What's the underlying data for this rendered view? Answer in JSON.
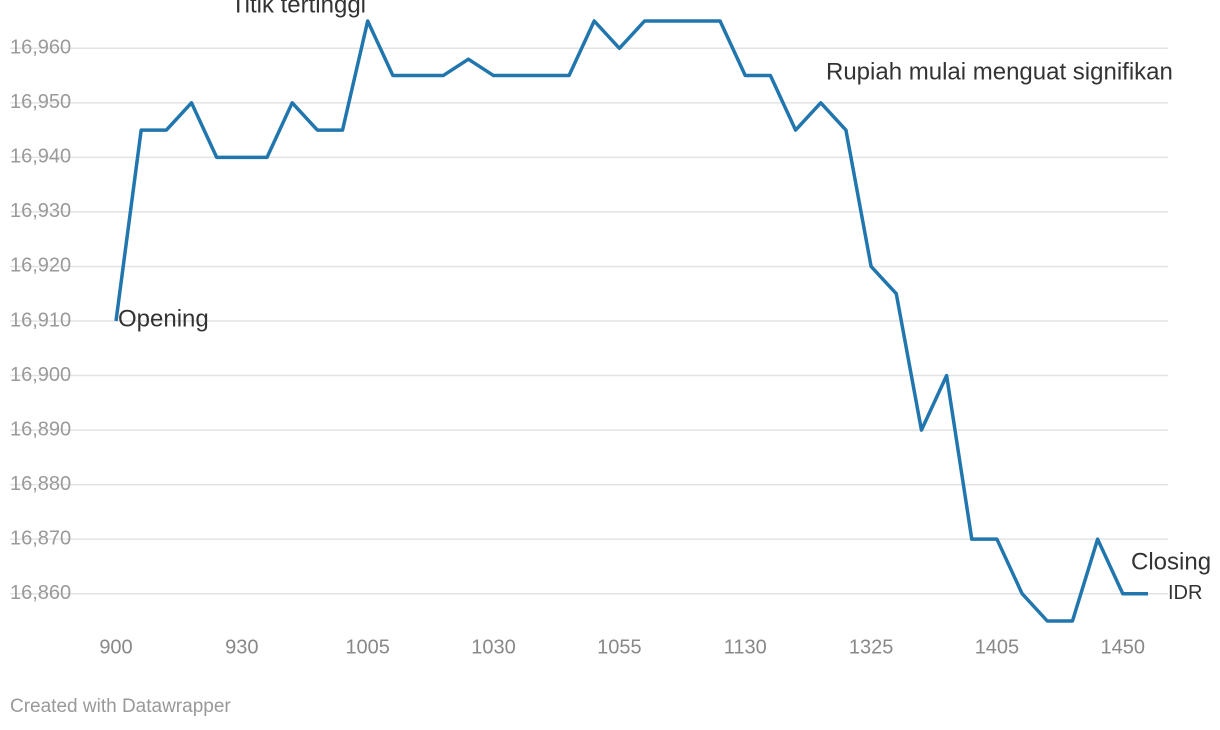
{
  "chart_data": {
    "type": "line",
    "annotations": {
      "peak": "Titik tertinggi",
      "strengthen": "Rupiah mulai menguat signifikan",
      "opening": "Opening",
      "closing": "Closing"
    },
    "footer": "Created with Datawrapper",
    "categories": [
      "900",
      null,
      null,
      null,
      null,
      "930",
      null,
      null,
      null,
      null,
      "1005",
      null,
      null,
      null,
      null,
      "1030",
      null,
      null,
      null,
      null,
      "1055",
      null,
      null,
      null,
      null,
      "1130",
      null,
      null,
      null,
      null,
      "1325",
      null,
      null,
      null,
      null,
      "1405",
      null,
      null,
      null,
      null,
      "1450",
      null
    ],
    "series": [
      {
        "name": "IDR",
        "color": "#2176ae",
        "values": [
          16910,
          16945,
          16945,
          16950,
          16940,
          16940,
          16940,
          16950,
          16945,
          16945,
          16965,
          16955,
          16955,
          16955,
          16958,
          16955,
          16955,
          16955,
          16955,
          16965,
          16960,
          16965,
          16965,
          16965,
          16965,
          16955,
          16955,
          16945,
          16950,
          16945,
          16920,
          16915,
          16890,
          16900,
          16870,
          16870,
          16860,
          16855,
          16855,
          16870,
          16860,
          16860
        ]
      }
    ],
    "ylim": [
      16855,
      16965
    ],
    "yticks": [
      {
        "value": 16860,
        "label": "16,860"
      },
      {
        "value": 16870,
        "label": "16,870"
      },
      {
        "value": 16880,
        "label": "16,880"
      },
      {
        "value": 16890,
        "label": "16,890"
      },
      {
        "value": 16900,
        "label": "16,900"
      },
      {
        "value": 16910,
        "label": "16,910"
      },
      {
        "value": 16920,
        "label": "16,920"
      },
      {
        "value": 16930,
        "label": "16,930"
      },
      {
        "value": 16940,
        "label": "16,940"
      },
      {
        "value": 16950,
        "label": "16,950"
      },
      {
        "value": 16960,
        "label": "16,960"
      }
    ],
    "grid": true
  }
}
